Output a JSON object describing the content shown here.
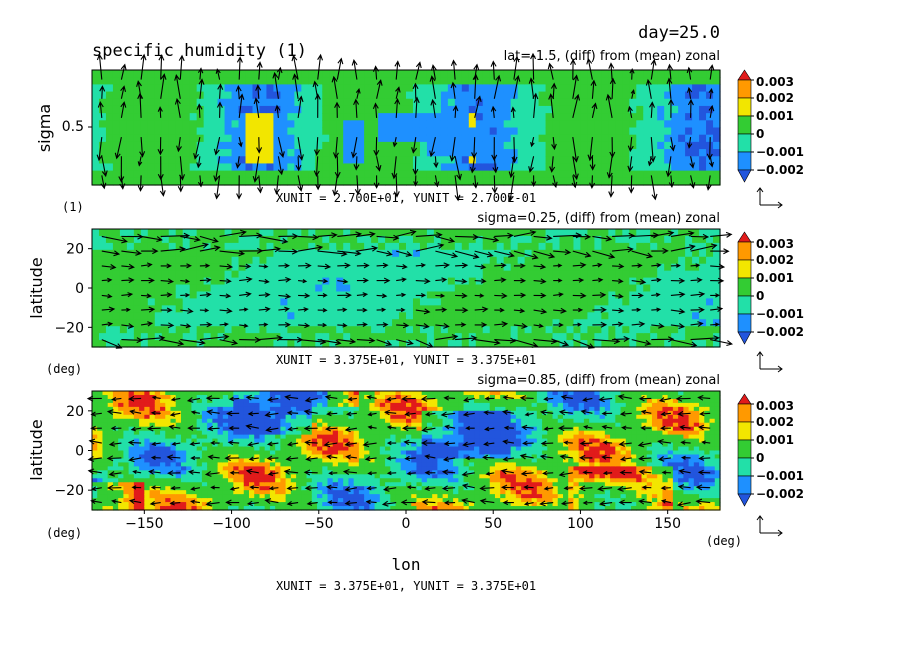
{
  "header": {
    "title": "specific humidity (1)",
    "day": "day=25.0"
  },
  "colors": {
    "red": "#e11b1b",
    "orange": "#ff9900",
    "yellow": "#f2e600",
    "green": "#33cc33",
    "cyan": "#22e0a8",
    "lightblue": "#1e90ff",
    "blue": "#2255dd"
  },
  "chart_data": [
    {
      "type": "heatmap",
      "panel": "top",
      "subtitle": "lat=-1.5, (diff) from (mean) zonal",
      "ylabel": "sigma",
      "yticks": [
        "0.5"
      ],
      "yunit_label": "(1)",
      "vector_scale": "XUNIT = 2.700E+01, YUNIT = 2.700E-01",
      "colorbar": [
        "0.003",
        "0.002",
        "0.001",
        "0",
        "−0.001",
        "−0.002"
      ]
    },
    {
      "type": "heatmap",
      "panel": "middle",
      "subtitle": "sigma=0.25, (diff) from (mean) zonal",
      "ylabel": "latitude",
      "yticks": [
        "20",
        "0",
        "−20"
      ],
      "yunit_label": "(deg)",
      "ylim": [
        -30,
        30
      ],
      "vector_scale": "XUNIT = 3.375E+01, YUNIT = 3.375E+01",
      "colorbar": [
        "0.003",
        "0.002",
        "0.001",
        "0",
        "−0.001",
        "−0.002"
      ]
    },
    {
      "type": "heatmap",
      "panel": "bottom",
      "subtitle": "sigma=0.85, (diff) from (mean) zonal",
      "ylabel": "latitude",
      "yticks": [
        "20",
        "0",
        "−20"
      ],
      "yunit_label": "(deg)",
      "xticks": [
        "−150",
        "−100",
        "−50",
        "0",
        "50",
        "100",
        "150"
      ],
      "xlabel": "lon",
      "xunit_label": "(deg)",
      "xlim": [
        -180,
        180
      ],
      "ylim": [
        -30,
        30
      ],
      "vector_scale": "XUNIT = 3.375E+01, YUNIT = 3.375E+01",
      "colorbar": [
        "0.003",
        "0.002",
        "0.001",
        "0",
        "−0.001",
        "−0.002"
      ]
    }
  ]
}
